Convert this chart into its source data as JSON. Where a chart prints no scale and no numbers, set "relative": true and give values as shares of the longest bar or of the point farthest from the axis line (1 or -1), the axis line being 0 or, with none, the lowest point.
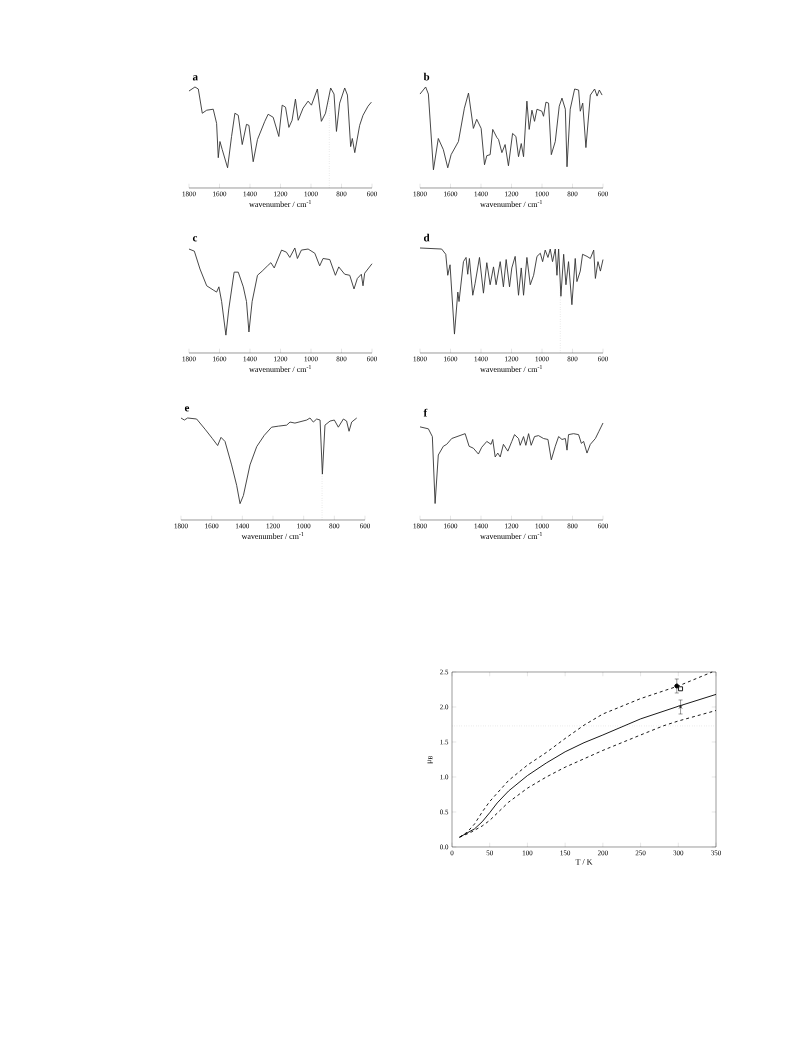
{
  "chart_data": [
    {
      "type": "line",
      "title": "a",
      "xlabel": "wavenumber / cm$^{-1}$",
      "relative": true,
      "color": "#333333",
      "xlim": [
        1800,
        600
      ],
      "xticks": [
        1800,
        1600,
        1400,
        1200,
        1000,
        800,
        600
      ],
      "x": [
        1800,
        1761,
        1739,
        1713,
        1684,
        1641,
        1619,
        1608,
        1597,
        1582,
        1547,
        1521,
        1499,
        1477,
        1451,
        1423,
        1407,
        1379,
        1351,
        1303,
        1281,
        1248,
        1211,
        1189,
        1167,
        1145,
        1124,
        1102,
        1084,
        1052,
        1019,
        997,
        958,
        932,
        905,
        871,
        849,
        833,
        812,
        779,
        761,
        740,
        729,
        713,
        681,
        659,
        626,
        604
      ],
      "values": [
        0.96,
        1.0,
        0.98,
        0.74,
        0.77,
        0.78,
        0.64,
        0.3,
        0.46,
        0.38,
        0.2,
        0.51,
        0.74,
        0.72,
        0.43,
        0.63,
        0.62,
        0.26,
        0.48,
        0.66,
        0.73,
        0.7,
        0.51,
        0.82,
        0.8,
        0.6,
        0.67,
        0.88,
        0.67,
        0.79,
        0.86,
        0.82,
        0.98,
        0.66,
        0.74,
        0.99,
        0.93,
        0.56,
        0.84,
        0.99,
        0.92,
        0.41,
        0.49,
        0.35,
        0.62,
        0.72,
        0.81,
        0.85
      ],
      "ref_lines": [
        {
          "axis": "x",
          "value": 880,
          "line_style": "dotted"
        }
      ]
    },
    {
      "type": "line",
      "title": "b",
      "xlabel": "wavenumber / cm$^{-1}$",
      "relative": true,
      "color": "#333333",
      "xlim": [
        1800,
        600
      ],
      "xticks": [
        1800,
        1600,
        1400,
        1200,
        1000,
        800,
        600
      ],
      "x": [
        1800,
        1763,
        1745,
        1712,
        1680,
        1647,
        1618,
        1596,
        1548,
        1509,
        1482,
        1450,
        1428,
        1399,
        1377,
        1362,
        1340,
        1323,
        1296,
        1285,
        1263,
        1242,
        1220,
        1193,
        1171,
        1154,
        1136,
        1121,
        1099,
        1084,
        1066,
        1049,
        1033,
        1001,
        990,
        974,
        957,
        939,
        913,
        887,
        869,
        847,
        836,
        815,
        786,
        760,
        749,
        733,
        712,
        683,
        655,
        639,
        624,
        606
      ],
      "values": [
        0.93,
        1.0,
        0.93,
        0.18,
        0.49,
        0.38,
        0.2,
        0.33,
        0.46,
        0.79,
        0.94,
        0.59,
        0.68,
        0.59,
        0.23,
        0.32,
        0.33,
        0.58,
        0.5,
        0.48,
        0.35,
        0.43,
        0.22,
        0.54,
        0.51,
        0.31,
        0.44,
        0.31,
        0.86,
        0.58,
        0.77,
        0.66,
        0.78,
        0.76,
        0.71,
        0.85,
        0.84,
        0.33,
        0.46,
        0.81,
        0.89,
        0.78,
        0.21,
        0.78,
        0.98,
        0.97,
        0.76,
        0.84,
        0.4,
        0.92,
        0.98,
        0.91,
        0.97,
        0.92
      ]
    },
    {
      "type": "line",
      "title": "c",
      "xlabel": "wavenumber / cm$^{-1}$",
      "relative": true,
      "color": "#333333",
      "xlim": [
        1800,
        600
      ],
      "xticks": [
        1800,
        1600,
        1400,
        1200,
        1000,
        800,
        600
      ],
      "x": [
        1800,
        1765,
        1728,
        1684,
        1641,
        1619,
        1604,
        1586,
        1558,
        1539,
        1504,
        1477,
        1444,
        1423,
        1407,
        1386,
        1351,
        1320,
        1285,
        1263,
        1241,
        1193,
        1161,
        1139,
        1106,
        1089,
        1063,
        1019,
        975,
        943,
        921,
        877,
        840,
        818,
        779,
        746,
        718,
        696,
        670,
        659,
        648,
        600
      ],
      "values": [
        0.99,
        0.97,
        0.8,
        0.64,
        0.6,
        0.58,
        0.63,
        0.49,
        0.17,
        0.42,
        0.77,
        0.77,
        0.63,
        0.49,
        0.2,
        0.49,
        0.74,
        0.78,
        0.83,
        0.86,
        0.81,
        0.98,
        0.96,
        0.91,
        1.0,
        0.9,
        0.98,
        0.99,
        0.95,
        0.83,
        0.9,
        0.89,
        0.74,
        0.82,
        0.75,
        0.74,
        0.61,
        0.71,
        0.75,
        0.64,
        0.76,
        0.85
      ]
    },
    {
      "type": "line",
      "title": "d",
      "xlabel": "wavenumber / cm$^{-1}$",
      "relative": true,
      "color": "#333333",
      "xlim": [
        1800,
        600
      ],
      "xticks": [
        1800,
        1600,
        1400,
        1200,
        1000,
        800,
        600
      ],
      "x": [
        1800,
        1658,
        1631,
        1618,
        1603,
        1574,
        1552,
        1544,
        1515,
        1498,
        1487,
        1476,
        1454,
        1439,
        1410,
        1384,
        1362,
        1340,
        1318,
        1301,
        1274,
        1253,
        1235,
        1213,
        1198,
        1176,
        1154,
        1136,
        1121,
        1099,
        1077,
        1055,
        1033,
        1011,
        996,
        979,
        961,
        946,
        931,
        913,
        902,
        891,
        876,
        858,
        843,
        826,
        804,
        782,
        771,
        749,
        734,
        705,
        683,
        661,
        650,
        633,
        617,
        600
      ],
      "values": [
        1.0,
        0.99,
        0.94,
        0.74,
        0.84,
        0.18,
        0.58,
        0.49,
        0.87,
        0.91,
        0.75,
        0.9,
        0.55,
        0.66,
        0.91,
        0.57,
        0.86,
        0.65,
        0.82,
        0.65,
        0.87,
        0.63,
        0.89,
        0.63,
        0.81,
        0.92,
        0.55,
        0.81,
        0.55,
        0.91,
        0.65,
        0.74,
        0.92,
        0.95,
        0.87,
        0.98,
        0.91,
        0.99,
        0.87,
        0.99,
        0.74,
        0.99,
        0.54,
        0.94,
        0.65,
        0.87,
        0.46,
        0.9,
        0.68,
        0.78,
        0.94,
        0.92,
        0.9,
        0.98,
        0.71,
        0.87,
        0.78,
        0.89
      ],
      "ref_lines": [
        {
          "axis": "x",
          "value": 880,
          "line_style": "dotted"
        }
      ]
    },
    {
      "type": "line",
      "title": "e",
      "xlabel": "wavenumber / cm$^{-1}$",
      "relative": true,
      "color": "#333333",
      "xlim": [
        1800,
        600
      ],
      "xticks": [
        1800,
        1600,
        1400,
        1200,
        1000,
        800,
        600
      ],
      "x": [
        1800,
        1778,
        1757,
        1698,
        1643,
        1596,
        1561,
        1539,
        1513,
        1470,
        1437,
        1415,
        1393,
        1350,
        1306,
        1257,
        1209,
        1165,
        1111,
        1089,
        1057,
        980,
        959,
        937,
        915,
        893,
        878,
        861,
        828,
        800,
        774,
        741,
        720,
        704,
        687,
        654
      ],
      "values": [
        1.0,
        0.98,
        1.0,
        0.99,
        0.89,
        0.8,
        0.73,
        0.81,
        0.77,
        0.54,
        0.34,
        0.16,
        0.24,
        0.54,
        0.72,
        0.83,
        0.91,
        0.92,
        0.93,
        0.96,
        0.95,
        0.98,
        1.0,
        0.96,
        0.99,
        0.98,
        0.45,
        0.93,
        0.97,
        0.98,
        0.91,
        0.99,
        0.97,
        0.87,
        0.96,
        1.0
      ],
      "ref_lines": [
        {
          "axis": "x",
          "value": 880,
          "line_style": "dotted"
        }
      ]
    },
    {
      "type": "line",
      "title": "f",
      "xlabel": "wavenumber / cm$^{-1}$",
      "relative": true,
      "color": "#333333",
      "xlim": [
        1800,
        600
      ],
      "xticks": [
        1800,
        1600,
        1400,
        1200,
        1000,
        800,
        600
      ],
      "x": [
        1800,
        1745,
        1719,
        1701,
        1680,
        1647,
        1625,
        1592,
        1504,
        1478,
        1450,
        1417,
        1395,
        1362,
        1334,
        1323,
        1307,
        1290,
        1274,
        1253,
        1224,
        1198,
        1180,
        1154,
        1143,
        1121,
        1106,
        1088,
        1071,
        1049,
        1023,
        990,
        961,
        939,
        913,
        891,
        869,
        847,
        836,
        826,
        793,
        760,
        742,
        727,
        705,
        683,
        650,
        628,
        600
      ],
      "values": [
        0.96,
        0.94,
        0.86,
        0.17,
        0.67,
        0.76,
        0.78,
        0.84,
        0.89,
        0.76,
        0.74,
        0.68,
        0.75,
        0.81,
        0.78,
        0.83,
        0.65,
        0.69,
        0.65,
        0.78,
        0.71,
        0.81,
        0.88,
        0.84,
        0.77,
        0.86,
        0.77,
        0.89,
        0.77,
        0.86,
        0.87,
        0.84,
        0.83,
        0.62,
        0.76,
        0.86,
        0.83,
        0.84,
        0.72,
        0.88,
        0.89,
        0.88,
        0.79,
        0.81,
        0.69,
        0.78,
        0.84,
        0.91,
        1.0
      ]
    },
    {
      "type": "line",
      "xlabel": "T / K",
      "ylabel": "μ$_{B}$",
      "xlim": [
        0,
        350
      ],
      "xticks": [
        0,
        50,
        100,
        150,
        200,
        250,
        300,
        350
      ],
      "ylim": [
        0,
        2.5
      ],
      "yticks": [
        {
          "value": 0,
          "label": "0.0"
        },
        {
          "value": 0.5,
          "label": "0.5"
        },
        {
          "value": 1,
          "label": "1.0"
        },
        {
          "value": 1.5,
          "label": "1.5"
        },
        {
          "value": 2,
          "label": "2.0"
        },
        {
          "value": 2.5,
          "label": "2.5"
        }
      ],
      "ref_lines": [
        {
          "axis": "y",
          "value": 1.73,
          "line_style": "dotted"
        }
      ],
      "series": [
        {
          "type": "line",
          "color": "#000000",
          "line_style": "solid",
          "x": [
            10,
            20,
            30,
            40,
            50,
            60,
            75,
            100,
            125,
            150,
            175,
            200,
            250,
            300,
            350
          ],
          "values": [
            0.14,
            0.2,
            0.26,
            0.36,
            0.49,
            0.63,
            0.8,
            1.02,
            1.2,
            1.36,
            1.49,
            1.6,
            1.83,
            2.01,
            2.18
          ]
        },
        {
          "type": "line",
          "color": "#000000",
          "line_style": "dashed",
          "x": [
            10,
            20,
            30,
            40,
            50,
            75,
            100,
            125,
            150,
            175,
            200,
            250,
            300,
            345
          ],
          "values": [
            0.14,
            0.21,
            0.33,
            0.5,
            0.65,
            0.95,
            1.17,
            1.35,
            1.55,
            1.74,
            1.9,
            2.12,
            2.3,
            2.5
          ]
        },
        {
          "type": "line",
          "color": "#000000",
          "line_style": "dashed",
          "x": [
            10,
            25,
            40,
            50,
            75,
            100,
            125,
            150,
            200,
            250,
            280,
            300,
            350
          ],
          "values": [
            0.14,
            0.21,
            0.3,
            0.38,
            0.64,
            0.84,
            1.0,
            1.14,
            1.38,
            1.6,
            1.73,
            1.8,
            1.95
          ]
        },
        {
          "type": "scatter",
          "color": "#000000",
          "marker": "circle",
          "x": [
            298
          ],
          "values": [
            2.3
          ],
          "errors": [
            0.1
          ]
        },
        {
          "type": "scatter",
          "color": "#000000",
          "marker": "square",
          "x": [
            303
          ],
          "values": [
            2.26
          ]
        },
        {
          "type": "scatter",
          "color": "#000000",
          "marker": "cross",
          "x": [
            303
          ],
          "values": [
            2.0
          ],
          "errors": [
            0.1
          ]
        }
      ]
    }
  ]
}
